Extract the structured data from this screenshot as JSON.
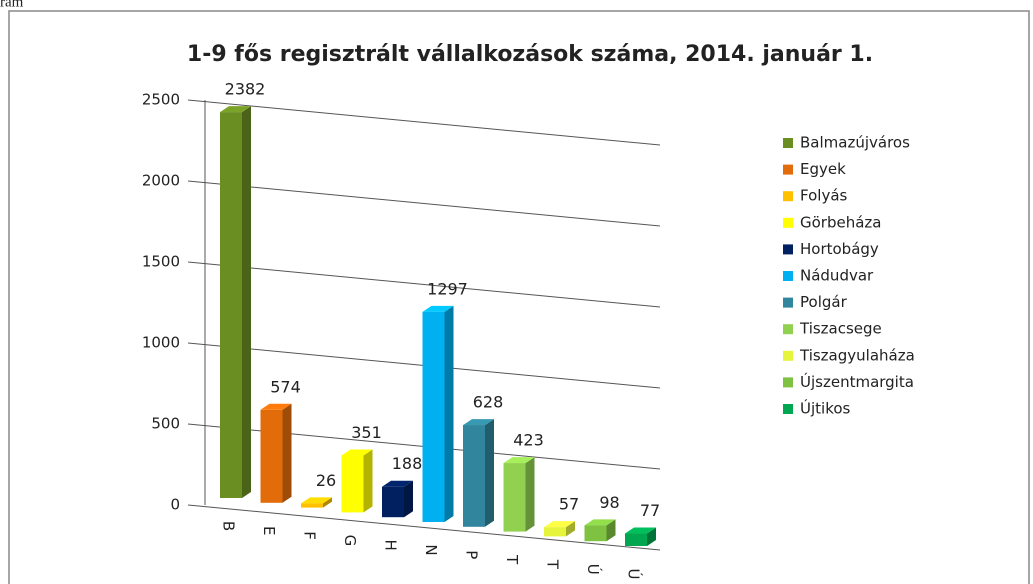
{
  "caption": "ram",
  "chart_data": {
    "type": "bar3d",
    "title": "1-9 fős regisztrált vállalkozások száma, 2014. január 1.",
    "categories": [
      "B",
      "E",
      "F",
      "G",
      "H",
      "N",
      "P",
      "T",
      "T",
      "Ú",
      "Ú"
    ],
    "values": [
      2382,
      574,
      26,
      351,
      188,
      1297,
      628,
      423,
      57,
      98,
      77
    ],
    "names": [
      "Balmazújváros",
      "Egyek",
      "Folyás",
      "Görbeháza",
      "Hortobágy",
      "Nádudvar",
      "Polgár",
      "Tiszacsege",
      "Tiszagyulaháza",
      "Újszentmargita",
      "Újtikos"
    ],
    "colors": [
      "#6b8e23",
      "#e36c0a",
      "#ffc000",
      "#ffff00",
      "#002060",
      "#00b0f0",
      "#31859c",
      "#92d050",
      "#e6f53c",
      "#7fc241",
      "#00a650"
    ],
    "ylim": [
      0,
      2500
    ],
    "yticks": [
      0,
      500,
      1000,
      1500,
      2000,
      2500
    ],
    "grid": true
  }
}
